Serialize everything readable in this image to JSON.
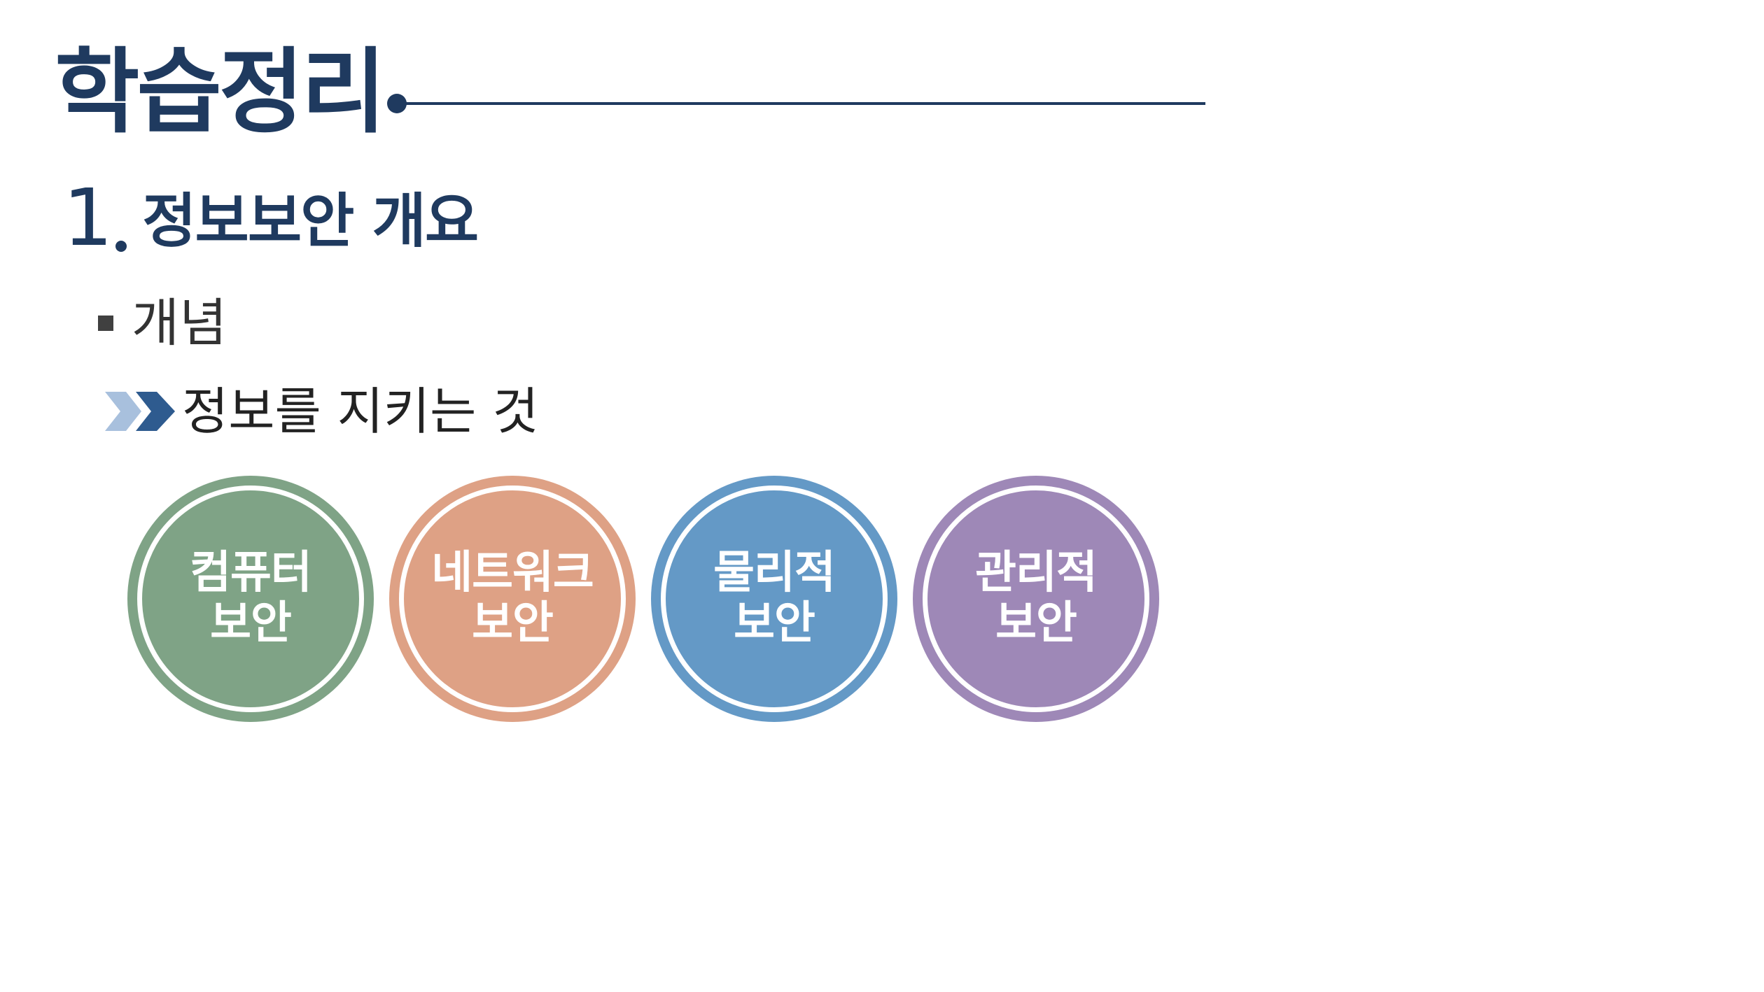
{
  "slide": {
    "title": "학습정리",
    "section": {
      "number": "1",
      "label": "정보보안 개요"
    },
    "bullet": "개념",
    "sub_point": "정보를 지키는 것",
    "circles": [
      {
        "line1": "컴퓨터",
        "line2": "보안",
        "color": "#7fa386"
      },
      {
        "line1": "네트워크",
        "line2": "보안",
        "color": "#dea185"
      },
      {
        "line1": "물리적",
        "line2": "보안",
        "color": "#6499c6"
      },
      {
        "line1": "관리적",
        "line2": "보안",
        "color": "#9e88b7"
      }
    ]
  },
  "colors": {
    "navy": "#1f3a5f",
    "chevron_light": "#a8c0dd",
    "chevron_dark": "#2e5b8f"
  },
  "icons": {
    "title_rule": "dot-line-decoration",
    "sub_bullet": "double-chevron-icon"
  }
}
